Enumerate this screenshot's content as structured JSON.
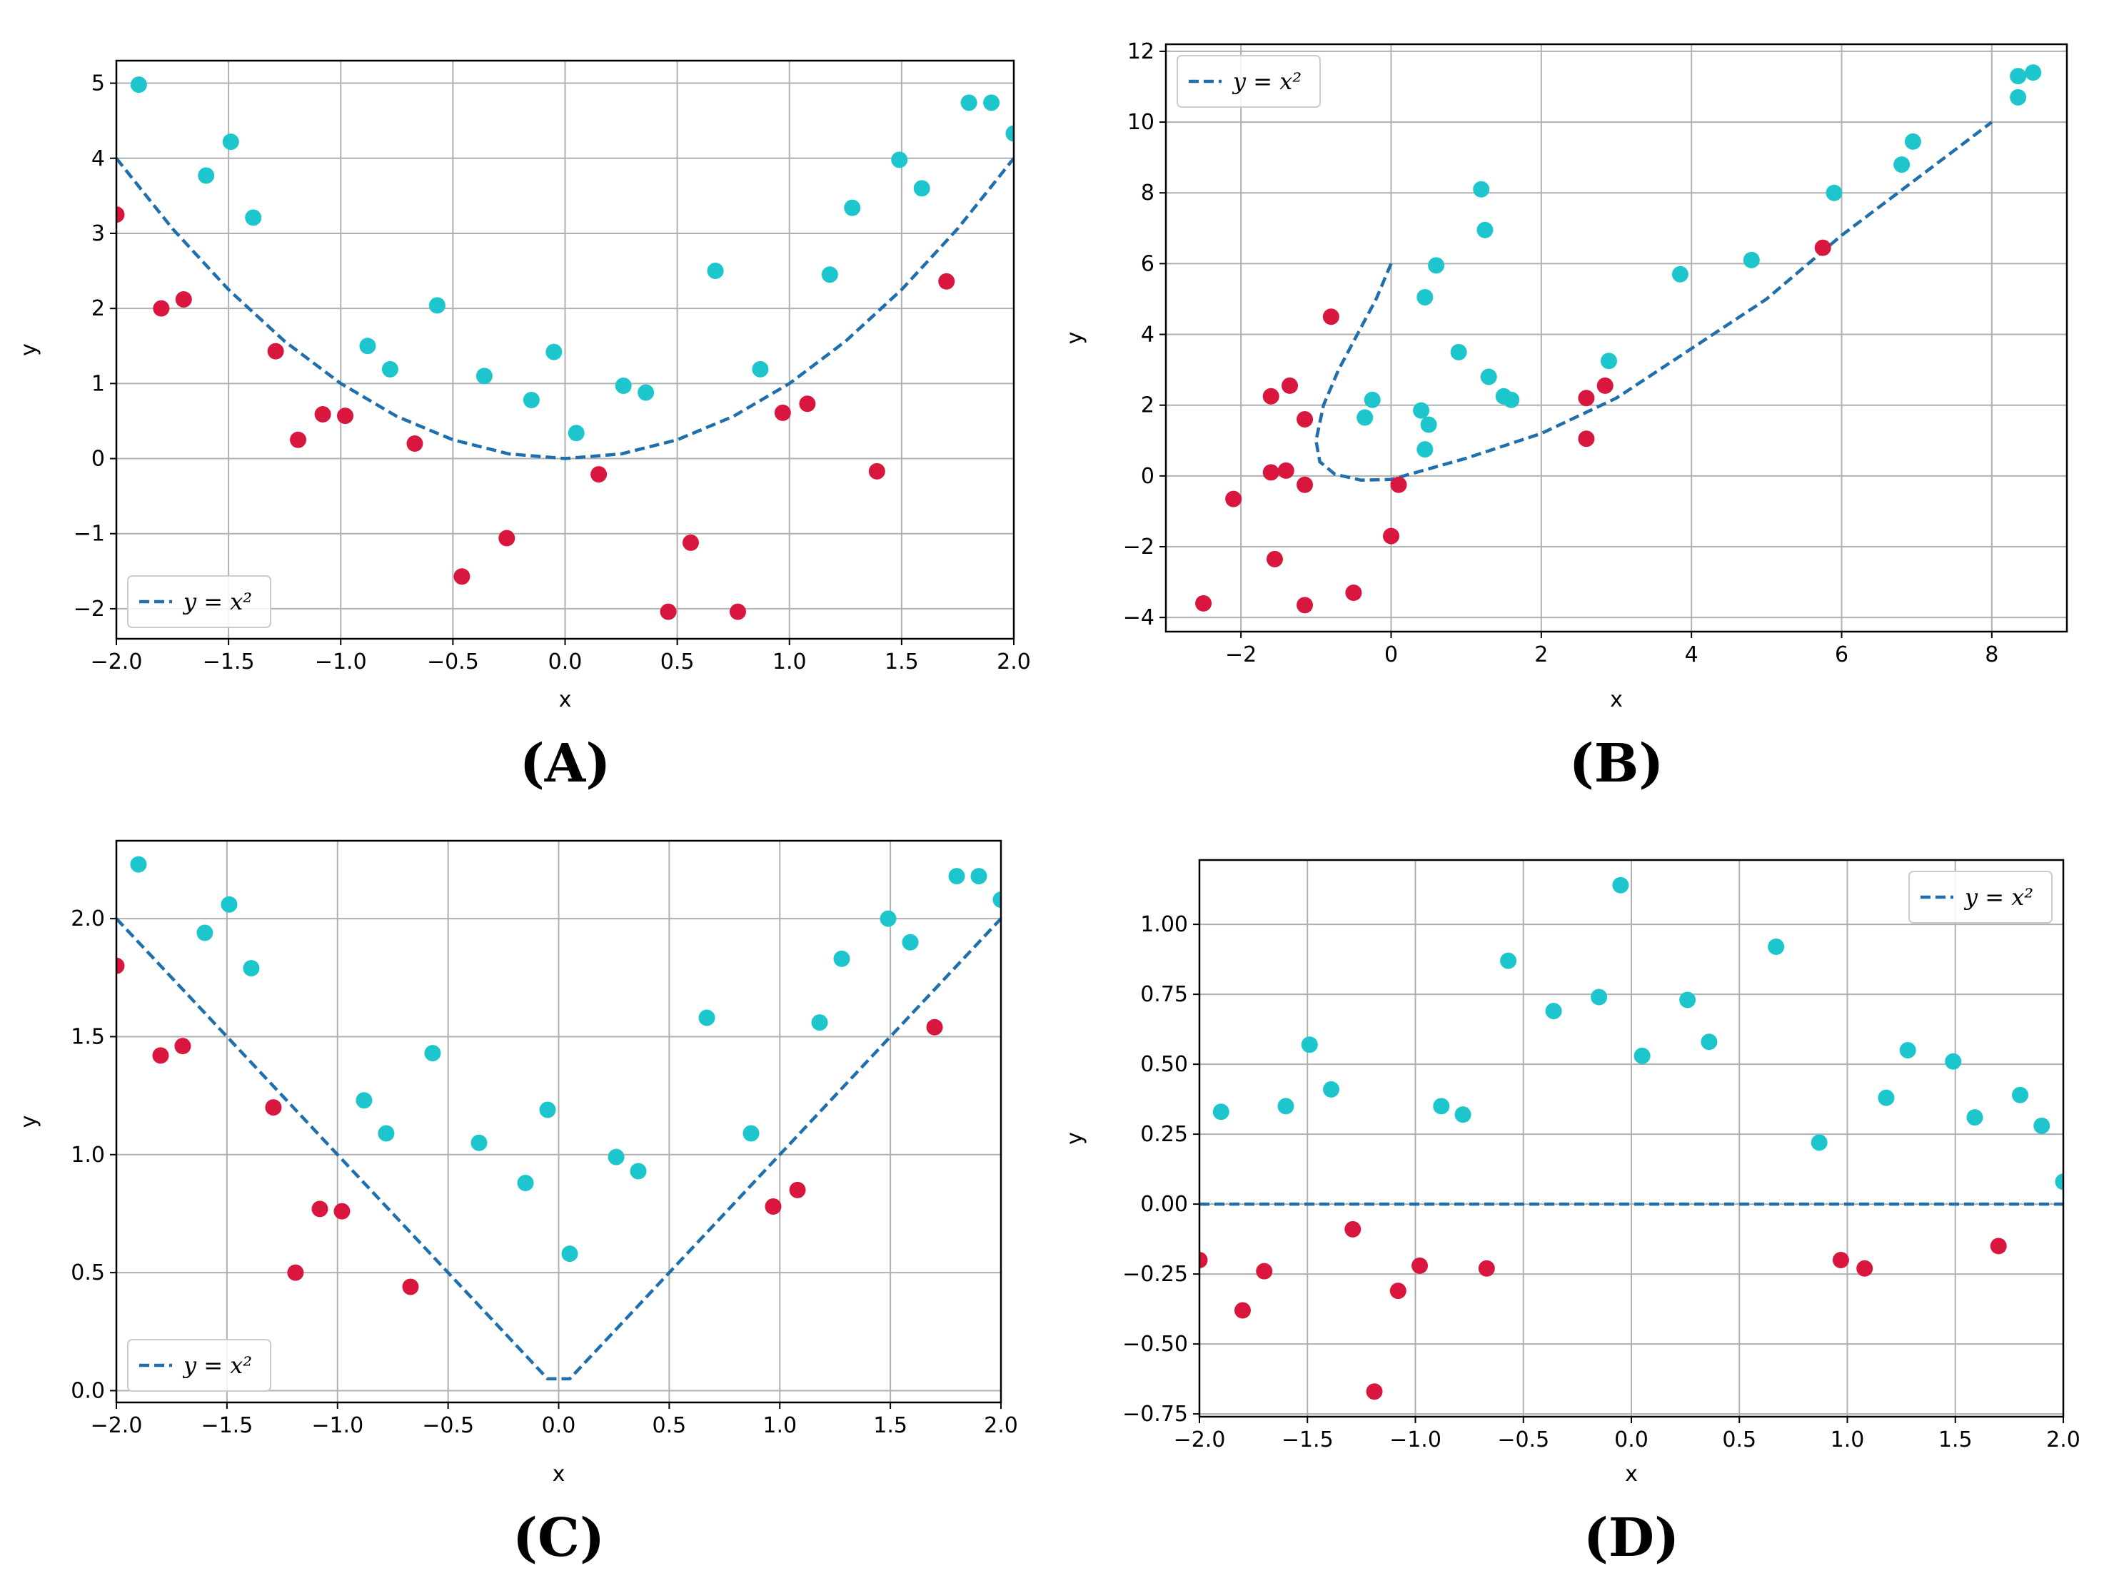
{
  "colors": {
    "teal": "#1cc6cc",
    "red": "#d9163e",
    "line": "#1f6fae",
    "grid": "#b0b0b0"
  },
  "chart_data": [
    {
      "panel_label": "(A)",
      "type": "scatter",
      "xlabel": "x",
      "ylabel": "y",
      "xlim": [
        -2.0,
        2.0
      ],
      "ylim": [
        -2.4,
        5.3
      ],
      "xticks": [
        -2.0,
        -1.5,
        -1.0,
        -0.5,
        0.0,
        0.5,
        1.0,
        1.5,
        2.0
      ],
      "xtick_labels": [
        "−2.0",
        "−1.5",
        "−1.0",
        "−0.5",
        "0.0",
        "0.5",
        "1.0",
        "1.5",
        "2.0"
      ],
      "yticks": [
        -2,
        -1,
        0,
        1,
        2,
        3,
        4,
        5
      ],
      "ytick_labels": [
        "−2",
        "−1",
        "0",
        "1",
        "2",
        "3",
        "4",
        "5"
      ],
      "grid": true,
      "legend": {
        "label": "y = x²",
        "placement": "lower-left"
      },
      "curve": {
        "name": "y = x²",
        "style": "dashed",
        "x": [
          -2.0,
          -1.75,
          -1.5,
          -1.25,
          -1.0,
          -0.75,
          -0.5,
          -0.25,
          0.0,
          0.25,
          0.5,
          0.75,
          1.0,
          1.25,
          1.5,
          1.75,
          2.0
        ],
        "y": [
          4.0,
          3.0625,
          2.25,
          1.5625,
          1.0,
          0.5625,
          0.25,
          0.0625,
          0.0,
          0.0625,
          0.25,
          0.5625,
          1.0,
          1.5625,
          2.25,
          3.0625,
          4.0
        ]
      },
      "series": [
        {
          "name": "above",
          "color": "teal",
          "x": [
            -1.9,
            -1.6,
            -1.49,
            -1.39,
            -0.88,
            -0.78,
            -0.57,
            -0.36,
            -0.15,
            -0.05,
            0.05,
            0.26,
            0.36,
            0.67,
            0.87,
            1.18,
            1.28,
            1.49,
            1.59,
            1.8,
            1.9,
            2.0
          ],
          "y": [
            4.98,
            3.77,
            4.22,
            3.21,
            1.5,
            1.19,
            2.04,
            1.1,
            0.78,
            1.42,
            0.34,
            0.97,
            0.88,
            2.5,
            1.19,
            2.45,
            3.34,
            3.98,
            3.6,
            4.74,
            4.74,
            4.33
          ]
        },
        {
          "name": "below",
          "color": "red",
          "x": [
            -2.0,
            -1.8,
            -1.7,
            -1.29,
            -1.19,
            -1.08,
            -0.98,
            -0.67,
            -0.46,
            -0.26,
            0.15,
            0.46,
            0.56,
            0.77,
            0.97,
            1.08,
            1.39,
            1.7
          ],
          "y": [
            3.25,
            2.0,
            2.12,
            1.43,
            0.25,
            0.59,
            0.57,
            0.2,
            -1.57,
            -1.06,
            -0.21,
            -2.04,
            -1.12,
            -2.04,
            0.61,
            0.73,
            -0.17,
            2.36
          ]
        }
      ]
    },
    {
      "panel_label": "(B)",
      "type": "scatter",
      "xlabel": "x",
      "ylabel": "y",
      "xlim": [
        -3.0,
        9.0
      ],
      "ylim": [
        -4.4,
        12.2
      ],
      "xticks": [
        -2,
        0,
        2,
        4,
        6,
        8
      ],
      "xtick_labels": [
        "−2",
        "0",
        "2",
        "4",
        "6",
        "8"
      ],
      "yticks": [
        -4,
        -2,
        0,
        2,
        4,
        6,
        8,
        10,
        12
      ],
      "ytick_labels": [
        "−4",
        "−2",
        "0",
        "2",
        "4",
        "6",
        "8",
        "10",
        "12"
      ],
      "grid": true,
      "legend": {
        "label": "y = x²",
        "placement": "upper-left"
      },
      "curve": {
        "name": "y = x²",
        "style": "dashed",
        "x": [
          0.0,
          -0.2,
          -0.45,
          -0.7,
          -0.9,
          -1.0,
          -0.95,
          -0.75,
          -0.4,
          0.0,
          0.5,
          1.0,
          1.5,
          2.0,
          3.0,
          4.0,
          5.0,
          6.0,
          7.0,
          8.0
        ],
        "y": [
          6.0,
          5.0,
          4.0,
          3.0,
          2.0,
          1.0,
          0.4,
          0.05,
          -0.12,
          -0.1,
          0.2,
          0.5,
          0.85,
          1.2,
          2.2,
          3.6,
          5.0,
          6.8,
          8.4,
          10.0
        ]
      },
      "series": [
        {
          "name": "above",
          "color": "teal",
          "x": [
            -0.35,
            -0.25,
            0.4,
            0.45,
            0.45,
            0.5,
            0.6,
            0.9,
            1.2,
            1.25,
            1.3,
            1.5,
            1.6,
            2.9,
            3.85,
            4.8,
            5.9,
            6.8,
            6.95,
            8.35,
            8.35,
            8.55
          ],
          "y": [
            1.65,
            2.15,
            1.85,
            0.75,
            5.05,
            1.45,
            5.95,
            3.5,
            8.1,
            6.95,
            2.8,
            2.25,
            2.15,
            3.25,
            5.7,
            6.1,
            8.0,
            8.8,
            9.45,
            10.7,
            11.3,
            11.4
          ]
        },
        {
          "name": "below",
          "color": "red",
          "x": [
            -2.5,
            -2.1,
            -1.6,
            -1.6,
            -1.55,
            -1.4,
            -1.35,
            -1.15,
            -1.15,
            -1.15,
            -0.8,
            -0.5,
            0.0,
            0.1,
            2.6,
            2.6,
            2.85,
            5.75
          ],
          "y": [
            -3.6,
            -0.65,
            2.25,
            0.1,
            -2.35,
            0.15,
            2.55,
            1.6,
            -0.25,
            -3.65,
            4.5,
            -3.3,
            -1.7,
            -0.25,
            2.2,
            1.05,
            2.55,
            6.45
          ]
        }
      ]
    },
    {
      "panel_label": "(C)",
      "type": "scatter",
      "xlabel": "x",
      "ylabel": "y",
      "xlim": [
        -2.0,
        2.0
      ],
      "ylim": [
        -0.05,
        2.33
      ],
      "xticks": [
        -2.0,
        -1.5,
        -1.0,
        -0.5,
        0.0,
        0.5,
        1.0,
        1.5,
        2.0
      ],
      "xtick_labels": [
        "−2.0",
        "−1.5",
        "−1.0",
        "−0.5",
        "0.0",
        "0.5",
        "1.0",
        "1.5",
        "2.0"
      ],
      "yticks": [
        0.0,
        0.5,
        1.0,
        1.5,
        2.0
      ],
      "ytick_labels": [
        "0.0",
        "0.5",
        "1.0",
        "1.5",
        "2.0"
      ],
      "grid": true,
      "legend": {
        "label": "y = x²",
        "placement": "lower-left"
      },
      "curve": {
        "name": "y = x²",
        "style": "dashed",
        "x": [
          -2.0,
          -0.05,
          0.05,
          2.0
        ],
        "y": [
          2.0,
          0.05,
          0.05,
          2.0
        ]
      },
      "series": [
        {
          "name": "above",
          "color": "teal",
          "x": [
            -1.9,
            -1.6,
            -1.49,
            -1.39,
            -0.88,
            -0.78,
            -0.57,
            -0.36,
            -0.15,
            -0.05,
            0.05,
            0.26,
            0.36,
            0.67,
            0.87,
            1.18,
            1.28,
            1.49,
            1.59,
            1.8,
            1.9,
            2.0
          ],
          "y": [
            2.23,
            1.94,
            2.06,
            1.79,
            1.23,
            1.09,
            1.43,
            1.05,
            0.88,
            1.19,
            0.58,
            0.99,
            0.93,
            1.58,
            1.09,
            1.56,
            1.83,
            2.0,
            1.9,
            2.18,
            2.18,
            2.08
          ]
        },
        {
          "name": "below",
          "color": "red",
          "x": [
            -2.0,
            -1.8,
            -1.7,
            -1.29,
            -1.19,
            -1.08,
            -0.98,
            -0.67,
            0.97,
            1.08,
            1.7
          ],
          "y": [
            1.8,
            1.42,
            1.46,
            1.2,
            0.5,
            0.77,
            0.76,
            0.44,
            0.78,
            0.85,
            1.54
          ]
        }
      ]
    },
    {
      "panel_label": "(D)",
      "type": "scatter",
      "xlabel": "x",
      "ylabel": "y",
      "xlim": [
        -2.0,
        2.0
      ],
      "ylim": [
        -0.76,
        1.23
      ],
      "xticks": [
        -2.0,
        -1.5,
        -1.0,
        -0.5,
        0.0,
        0.5,
        1.0,
        1.5,
        2.0
      ],
      "xtick_labels": [
        "−2.0",
        "−1.5",
        "−1.0",
        "−0.5",
        "0.0",
        "0.5",
        "1.0",
        "1.5",
        "2.0"
      ],
      "yticks": [
        -0.75,
        -0.5,
        -0.25,
        0.0,
        0.25,
        0.5,
        0.75,
        1.0
      ],
      "ytick_labels": [
        "−0.75",
        "−0.50",
        "−0.25",
        "0.00",
        "0.25",
        "0.50",
        "0.75",
        "1.00"
      ],
      "grid": true,
      "legend": {
        "label": "y = x²",
        "placement": "upper-right"
      },
      "curve": {
        "name": "y = x²",
        "style": "dashed",
        "x": [
          -2.0,
          2.0
        ],
        "y": [
          0.0,
          0.0
        ]
      },
      "series": [
        {
          "name": "above",
          "color": "teal",
          "x": [
            -1.9,
            -1.6,
            -1.49,
            -1.39,
            -0.88,
            -0.78,
            -0.57,
            -0.36,
            -0.15,
            -0.05,
            0.05,
            0.26,
            0.36,
            0.67,
            0.87,
            1.18,
            1.28,
            1.49,
            1.59,
            1.8,
            1.9,
            2.0
          ],
          "y": [
            0.33,
            0.35,
            0.57,
            0.41,
            0.35,
            0.32,
            0.87,
            0.69,
            0.74,
            1.14,
            0.53,
            0.73,
            0.58,
            0.92,
            0.22,
            0.38,
            0.55,
            0.51,
            0.31,
            0.39,
            0.28,
            0.08
          ]
        },
        {
          "name": "below",
          "color": "red",
          "x": [
            -2.0,
            -1.8,
            -1.7,
            -1.29,
            -1.19,
            -1.08,
            -0.98,
            -0.67,
            0.97,
            1.08,
            1.7
          ],
          "y": [
            -0.2,
            -0.38,
            -0.24,
            -0.09,
            -0.67,
            -0.31,
            -0.22,
            -0.23,
            -0.2,
            -0.23,
            -0.15
          ]
        }
      ]
    }
  ]
}
